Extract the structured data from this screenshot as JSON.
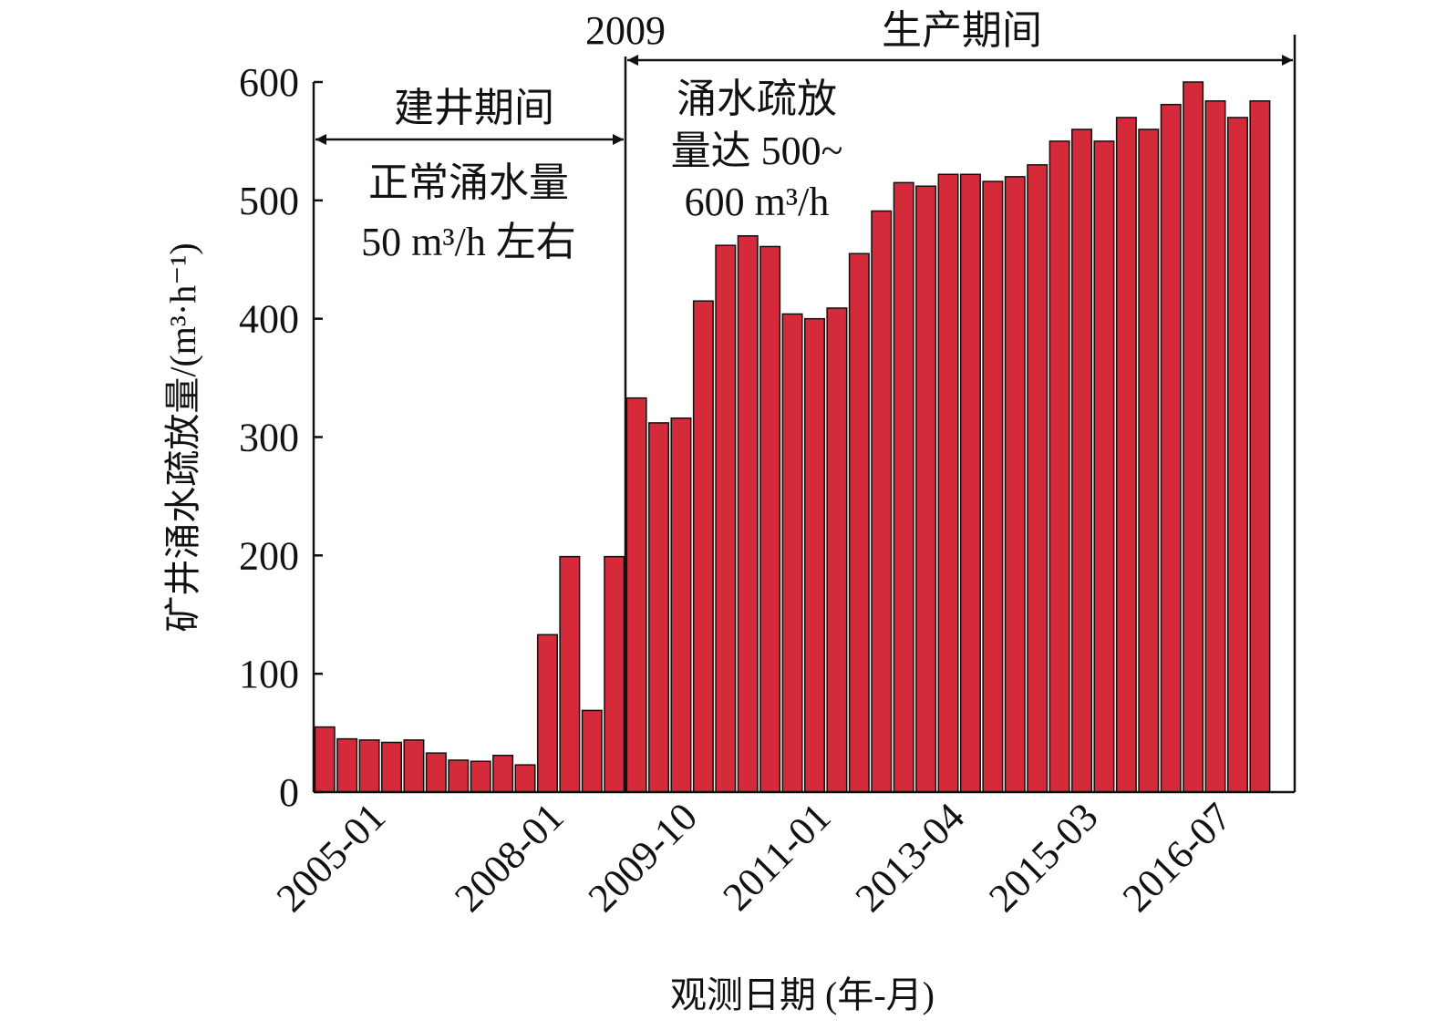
{
  "chart_data": {
    "type": "bar",
    "ylabel": "矿井涌水疏放量/(m³·h⁻¹)",
    "xlabel": "观测日期 (年-月)",
    "ylim": [
      0,
      600
    ],
    "yticks": [
      "0",
      "100",
      "200",
      "300",
      "400",
      "500",
      "600"
    ],
    "xtick_labels": [
      {
        "label": "2005-01",
        "at": 2
      },
      {
        "label": "2008-01",
        "at": 10
      },
      {
        "label": "2009-10",
        "at": 16
      },
      {
        "label": "2011-01",
        "at": 22
      },
      {
        "label": "2013-04",
        "at": 28
      },
      {
        "label": "2015-03",
        "at": 34
      },
      {
        "label": "2016-07",
        "at": 40
      }
    ],
    "values": [
      55,
      45,
      44,
      42,
      44,
      33,
      27,
      26,
      31,
      23,
      133,
      199,
      69,
      199,
      333,
      312,
      316,
      415,
      462,
      470,
      461,
      404,
      400,
      409,
      455,
      491,
      515,
      512,
      522,
      522,
      516,
      520,
      530,
      550,
      560,
      550,
      570,
      560,
      581,
      600,
      584,
      570,
      584
    ],
    "grid": false,
    "period_divider_label": "2009",
    "construction_period": {
      "title": "建井期间",
      "note_line1": "正常涌水量",
      "note_line2": "50 m³/h 左右"
    },
    "production_period": {
      "title": "生产期间",
      "note_line1": "涌水疏放",
      "note_line2": "量达 500~",
      "note_line3": "600 m³/h"
    }
  }
}
